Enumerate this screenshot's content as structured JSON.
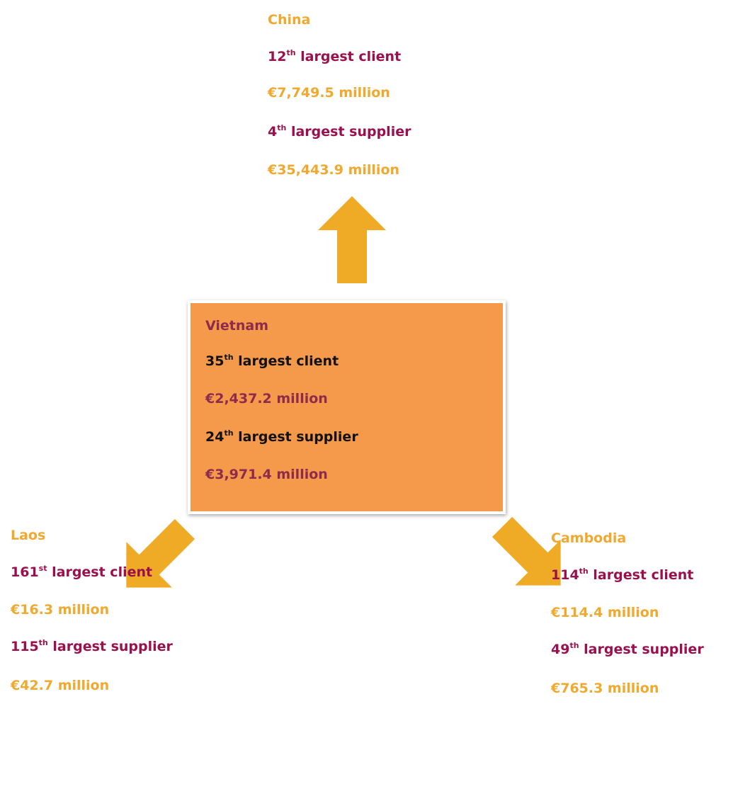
{
  "nodes": [
    {
      "name": "China",
      "client": {
        "rank": "12",
        "suffix": "th",
        "text": "largest client"
      },
      "client_value": "€7,749.5 million",
      "supplier": {
        "rank": "4",
        "suffix": "th",
        "text": "largest supplier"
      },
      "supplier_value": "€35,443.9 million"
    },
    {
      "name": "Vietnam",
      "client": {
        "rank": "35",
        "suffix": "th",
        "text": "largest client"
      },
      "client_value": "€2,437.2 million",
      "supplier": {
        "rank": "24",
        "suffix": "th",
        "text": "largest supplier"
      },
      "supplier_value": "€3,971.4 million"
    },
    {
      "name": "Laos",
      "client": {
        "rank": "161",
        "suffix": "st",
        "text": "largest client"
      },
      "client_value": "€16.3 million",
      "supplier": {
        "rank": "115",
        "suffix": "th",
        "text": "largest supplier"
      },
      "supplier_value": "€42.7 million"
    },
    {
      "name": "Cambodia",
      "client": {
        "rank": "114",
        "suffix": "th",
        "text": "largest client"
      },
      "client_value": "€114.4 million",
      "supplier": {
        "rank": "49",
        "suffix": "th",
        "text": "largest supplier"
      },
      "supplier_value": "€765.3 million"
    }
  ]
}
